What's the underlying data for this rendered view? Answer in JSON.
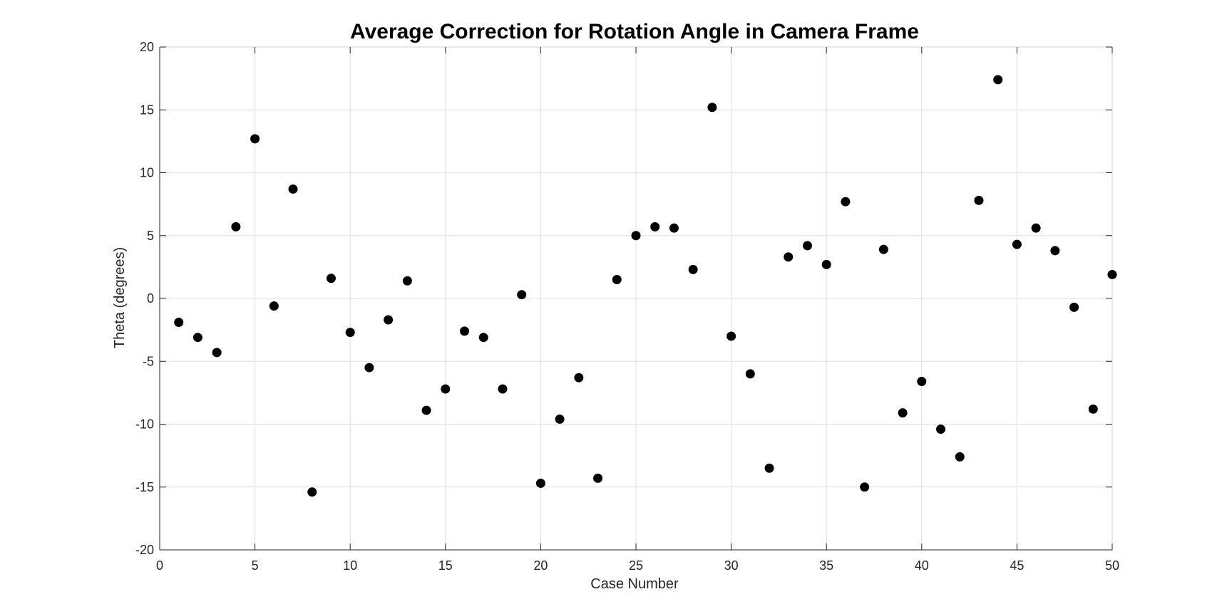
{
  "chart_data": {
    "type": "scatter",
    "title": "Average Correction for Rotation Angle in Camera Frame",
    "xlabel": "Case Number",
    "ylabel": "Theta (degrees)",
    "xlim": [
      0,
      50
    ],
    "ylim": [
      -20,
      20
    ],
    "xticks": [
      0,
      5,
      10,
      15,
      20,
      25,
      30,
      35,
      40,
      45,
      50
    ],
    "yticks": [
      -20,
      -15,
      -10,
      -5,
      0,
      5,
      10,
      15,
      20
    ],
    "xtick_labels": [
      "0",
      "5",
      "10",
      "15",
      "20",
      "25",
      "30",
      "35",
      "40",
      "45",
      "50"
    ],
    "ytick_labels": [
      "-20",
      "-15",
      "-10",
      "-5",
      "0",
      "5",
      "10",
      "15",
      "20"
    ],
    "grid": true,
    "marker_color": "#000000",
    "x": [
      1,
      2,
      3,
      4,
      5,
      6,
      7,
      8,
      9,
      10,
      11,
      12,
      13,
      14,
      15,
      16,
      17,
      18,
      19,
      20,
      21,
      22,
      23,
      24,
      25,
      26,
      27,
      28,
      29,
      30,
      31,
      32,
      33,
      34,
      35,
      36,
      37,
      38,
      39,
      40,
      41,
      42,
      43,
      44,
      45,
      46,
      47,
      48,
      49,
      50
    ],
    "y": [
      -1.9,
      -3.1,
      -4.3,
      5.7,
      12.7,
      -0.6,
      8.7,
      -15.4,
      1.6,
      -2.7,
      -5.5,
      -1.7,
      1.4,
      -8.9,
      -7.2,
      -2.6,
      -3.1,
      -7.2,
      0.3,
      -14.7,
      -9.6,
      -6.3,
      -14.3,
      1.5,
      5.0,
      5.7,
      5.6,
      2.3,
      15.2,
      -3.0,
      -6.0,
      -13.5,
      3.3,
      4.2,
      2.7,
      7.7,
      -15.0,
      3.9,
      -9.1,
      -6.6,
      -10.4,
      -12.6,
      7.8,
      17.4,
      4.3,
      5.6,
      3.8,
      -0.7,
      -8.8,
      1.9
    ]
  }
}
